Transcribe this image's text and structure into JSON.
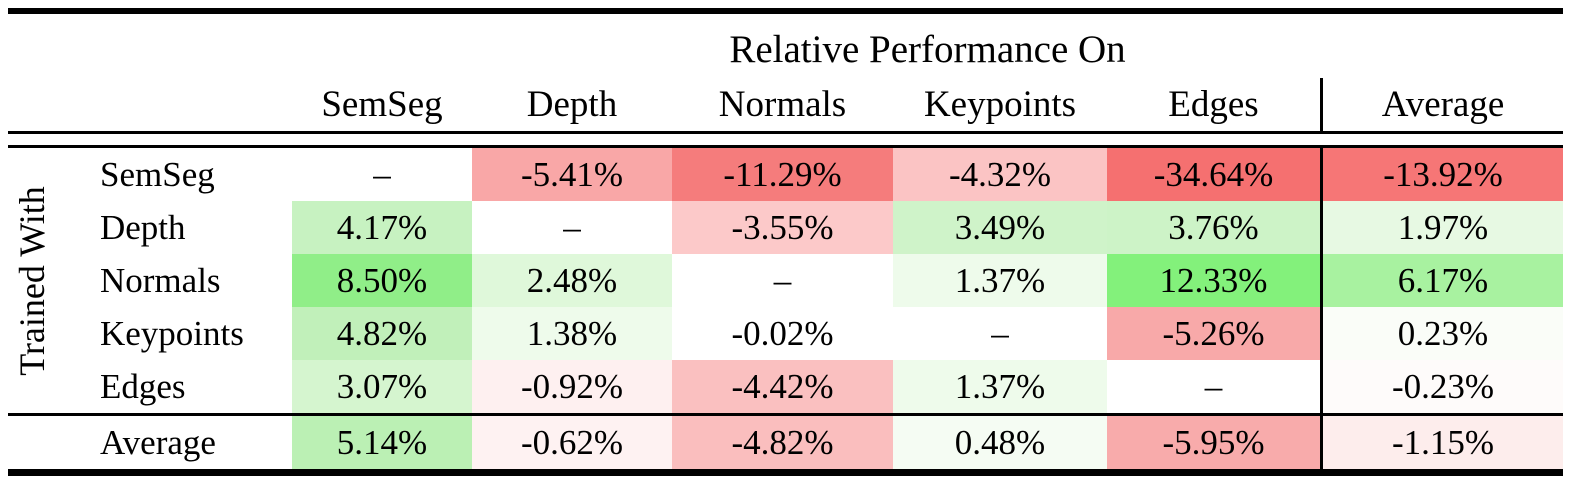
{
  "title": "Relative Performance On",
  "table": {
    "row_axis_label": "Trained With",
    "columns": [
      "SemSeg",
      "Depth",
      "Normals",
      "Keypoints",
      "Edges",
      "Average"
    ],
    "rows": [
      {
        "label": "SemSeg",
        "cells": [
          {
            "text": "–",
            "bg": "#FFFFFF"
          },
          {
            "text": "-5.41%",
            "bg": "#F9A7A7"
          },
          {
            "text": "-11.29%",
            "bg": "#F57C7C"
          },
          {
            "text": "-4.32%",
            "bg": "#FBC4C4"
          },
          {
            "text": "-34.64%",
            "bg": "#F57070"
          },
          {
            "text": "-13.92%",
            "bg": "#F67676"
          }
        ]
      },
      {
        "label": "Depth",
        "cells": [
          {
            "text": "4.17%",
            "bg": "#C7F2C1"
          },
          {
            "text": "–",
            "bg": "#FFFFFF"
          },
          {
            "text": "-3.55%",
            "bg": "#FCC9C9"
          },
          {
            "text": "3.49%",
            "bg": "#CFF3C9"
          },
          {
            "text": "3.76%",
            "bg": "#CDF3C7"
          },
          {
            "text": "1.97%",
            "bg": "#E7F9E3"
          }
        ]
      },
      {
        "label": "Normals",
        "cells": [
          {
            "text": "8.50%",
            "bg": "#90EE88"
          },
          {
            "text": "2.48%",
            "bg": "#DFF8DA"
          },
          {
            "text": "–",
            "bg": "#FFFFFF"
          },
          {
            "text": "1.37%",
            "bg": "#EEFBEB"
          },
          {
            "text": "12.33%",
            "bg": "#83F17B"
          },
          {
            "text": "6.17%",
            "bg": "#A8F2A0"
          }
        ]
      },
      {
        "label": "Keypoints",
        "cells": [
          {
            "text": "4.82%",
            "bg": "#C1F0BA"
          },
          {
            "text": "1.38%",
            "bg": "#EEFBEB"
          },
          {
            "text": "-0.02%",
            "bg": "#FFFFFF"
          },
          {
            "text": "–",
            "bg": "#FFFFFF"
          },
          {
            "text": "-5.26%",
            "bg": "#F8A9A9"
          },
          {
            "text": "0.23%",
            "bg": "#FAFDF8"
          }
        ]
      },
      {
        "label": "Edges",
        "cells": [
          {
            "text": "3.07%",
            "bg": "#D5F5CF"
          },
          {
            "text": "-0.92%",
            "bg": "#FEF0F0"
          },
          {
            "text": "-4.42%",
            "bg": "#FAC0C0"
          },
          {
            "text": "1.37%",
            "bg": "#EEFBEB"
          },
          {
            "text": "–",
            "bg": "#FFFFFF"
          },
          {
            "text": "-0.23%",
            "bg": "#FEFBFA"
          }
        ]
      }
    ],
    "average_row": {
      "label": "Average",
      "cells": [
        {
          "text": "5.14%",
          "bg": "#BBF0B4"
        },
        {
          "text": "-0.62%",
          "bg": "#FEF2F2"
        },
        {
          "text": "-4.82%",
          "bg": "#FABEBE"
        },
        {
          "text": "0.48%",
          "bg": "#F5FCF3"
        },
        {
          "text": "-5.95%",
          "bg": "#F8ABAB"
        },
        {
          "text": "-1.15%",
          "bg": "#FDEDEC"
        }
      ]
    }
  }
}
